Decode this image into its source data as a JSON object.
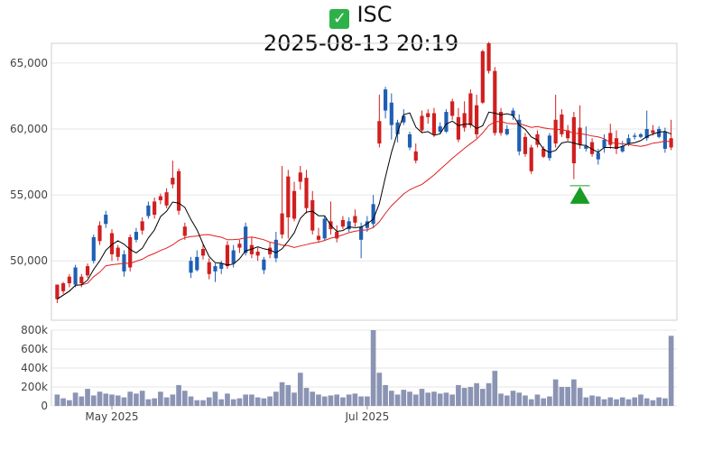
{
  "header": {
    "status_icon": "check-mark-icon",
    "symbol": "ISC",
    "timestamp": "2025-08-13 20:19"
  },
  "colors": {
    "up": "#1f5fb4",
    "down": "#d11f1f",
    "ma_short": "#000000",
    "ma_long": "#e02020",
    "volume": "#8c94b4",
    "signal": "#1a9c24",
    "grid": "#e6e6e6",
    "axis": "#999999"
  },
  "chart_data": {
    "type": "candlestick",
    "price_ylim": [
      45500,
      66500
    ],
    "price_yticks": [
      50000,
      55000,
      60000,
      65000
    ],
    "price_ytick_labels": [
      "50,000",
      "55,000",
      "60,000",
      "65,000"
    ],
    "volume_ylim": [
      0,
      800000
    ],
    "volume_yticks": [
      0,
      200000,
      400000,
      600000,
      800000
    ],
    "volume_ytick_labels": [
      "0",
      "200k",
      "400k",
      "600k",
      "800k"
    ],
    "x_tick_labels": [
      {
        "label": "May 2025",
        "index": 9
      },
      {
        "label": "Jul 2025",
        "index": 51
      }
    ],
    "candles": [
      [
        48200,
        47100,
        48200,
        46800,
        120000
      ],
      [
        48300,
        47700,
        48400,
        47500,
        80000
      ],
      [
        48800,
        48300,
        49000,
        48000,
        60000
      ],
      [
        48200,
        49500,
        49700,
        48000,
        140000
      ],
      [
        48800,
        48300,
        49000,
        48000,
        100000
      ],
      [
        49600,
        48900,
        49800,
        48700,
        180000
      ],
      [
        50000,
        51800,
        52000,
        49800,
        110000
      ],
      [
        52700,
        51500,
        53000,
        51200,
        150000
      ],
      [
        52800,
        53500,
        53800,
        52500,
        130000
      ],
      [
        52100,
        50500,
        52400,
        50000,
        120000
      ],
      [
        51000,
        50300,
        51200,
        50000,
        110000
      ],
      [
        49200,
        50500,
        50800,
        48800,
        90000
      ],
      [
        51800,
        49500,
        52000,
        49200,
        150000
      ],
      [
        51600,
        52200,
        52500,
        51400,
        130000
      ],
      [
        53000,
        52300,
        53300,
        52000,
        160000
      ],
      [
        53400,
        54200,
        54500,
        53200,
        70000
      ],
      [
        54500,
        53500,
        54800,
        53200,
        80000
      ],
      [
        54900,
        54600,
        55100,
        54300,
        150000
      ],
      [
        55200,
        54200,
        55500,
        54000,
        90000
      ],
      [
        56300,
        55800,
        57600,
        55500,
        120000
      ],
      [
        56800,
        53800,
        57000,
        53500,
        220000
      ],
      [
        52600,
        51900,
        52900,
        51600,
        160000
      ],
      [
        49100,
        50000,
        50300,
        48700,
        100000
      ],
      [
        49300,
        50300,
        50800,
        49200,
        60000
      ],
      [
        50900,
        50400,
        51300,
        50100,
        60000
      ],
      [
        49900,
        49000,
        50200,
        48600,
        90000
      ],
      [
        49200,
        49600,
        49800,
        48400,
        150000
      ],
      [
        49400,
        49800,
        50000,
        49000,
        70000
      ],
      [
        51200,
        49600,
        51500,
        49400,
        130000
      ],
      [
        49800,
        50800,
        51200,
        49500,
        70000
      ],
      [
        51300,
        51000,
        51600,
        50600,
        80000
      ],
      [
        50600,
        52600,
        52900,
        50400,
        120000
      ],
      [
        51200,
        50500,
        51800,
        50200,
        120000
      ],
      [
        50700,
        50400,
        51000,
        50000,
        90000
      ],
      [
        49300,
        50100,
        50300,
        49000,
        80000
      ],
      [
        51000,
        50500,
        51400,
        50200,
        100000
      ],
      [
        50200,
        51600,
        52200,
        49900,
        150000
      ],
      [
        53600,
        52000,
        57200,
        51700,
        250000
      ],
      [
        56400,
        53300,
        56900,
        51700,
        220000
      ],
      [
        55300,
        53200,
        56000,
        53000,
        140000
      ],
      [
        56700,
        56000,
        57200,
        55400,
        350000
      ],
      [
        56300,
        54000,
        56900,
        53600,
        190000
      ],
      [
        54600,
        52300,
        55300,
        52000,
        150000
      ],
      [
        51900,
        51600,
        52500,
        51400,
        120000
      ],
      [
        51700,
        53200,
        53400,
        51500,
        100000
      ],
      [
        53000,
        52400,
        54500,
        52000,
        110000
      ],
      [
        52200,
        51700,
        52700,
        51400,
        120000
      ],
      [
        53100,
        52600,
        53400,
        52400,
        90000
      ],
      [
        52400,
        53000,
        53300,
        52200,
        120000
      ],
      [
        53400,
        52900,
        53900,
        52600,
        130000
      ],
      [
        51600,
        52600,
        52900,
        50200,
        100000
      ],
      [
        52500,
        53000,
        53400,
        52200,
        100000
      ],
      [
        52800,
        54300,
        55000,
        52500,
        800000
      ],
      [
        60600,
        58900,
        62600,
        58600,
        350000
      ],
      [
        61400,
        63000,
        63200,
        60800,
        220000
      ],
      [
        60300,
        62000,
        62700,
        59200,
        160000
      ],
      [
        59600,
        60500,
        60700,
        59000,
        120000
      ],
      [
        60500,
        61000,
        61500,
        60300,
        170000
      ],
      [
        58600,
        59600,
        59800,
        58400,
        150000
      ],
      [
        58300,
        57600,
        58900,
        57400,
        120000
      ],
      [
        61000,
        59900,
        61400,
        59700,
        180000
      ],
      [
        61200,
        60900,
        61500,
        60400,
        140000
      ],
      [
        61200,
        59600,
        61600,
        59400,
        150000
      ],
      [
        59800,
        60200,
        60500,
        59700,
        130000
      ],
      [
        59800,
        61300,
        61500,
        59700,
        140000
      ],
      [
        62100,
        61000,
        62300,
        60700,
        120000
      ],
      [
        60900,
        59200,
        61600,
        59000,
        220000
      ],
      [
        61200,
        60100,
        62100,
        59800,
        190000
      ],
      [
        62700,
        60300,
        63000,
        60100,
        200000
      ],
      [
        61800,
        59600,
        62600,
        59300,
        240000
      ],
      [
        65900,
        62000,
        66000,
        61900,
        180000
      ],
      [
        66500,
        64400,
        66600,
        64200,
        240000
      ],
      [
        64400,
        59700,
        64700,
        59500,
        370000
      ],
      [
        61300,
        59700,
        61600,
        59500,
        130000
      ],
      [
        59600,
        60000,
        60300,
        59500,
        110000
      ],
      [
        61000,
        61400,
        61600,
        60700,
        160000
      ],
      [
        58300,
        60700,
        61100,
        58000,
        140000
      ],
      [
        59400,
        58100,
        59700,
        57900,
        110000
      ],
      [
        58600,
        56800,
        58800,
        56600,
        70000
      ],
      [
        59600,
        58800,
        59900,
        58600,
        120000
      ],
      [
        58500,
        57900,
        58700,
        57800,
        80000
      ],
      [
        57800,
        59500,
        59700,
        57600,
        100000
      ],
      [
        60700,
        58900,
        62600,
        58600,
        280000
      ],
      [
        61100,
        59600,
        61500,
        59400,
        200000
      ],
      [
        59900,
        59300,
        60300,
        59100,
        200000
      ],
      [
        60900,
        57400,
        61300,
        56200,
        280000
      ],
      [
        60100,
        58800,
        61800,
        58500,
        190000
      ],
      [
        58500,
        58700,
        60200,
        58300,
        90000
      ],
      [
        59000,
        58100,
        59300,
        57900,
        110000
      ],
      [
        57700,
        58200,
        58500,
        57300,
        100000
      ],
      [
        58600,
        59200,
        59600,
        58200,
        70000
      ],
      [
        59700,
        58800,
        60400,
        58500,
        90000
      ],
      [
        59300,
        58500,
        59900,
        58100,
        70000
      ],
      [
        58300,
        58700,
        59100,
        58200,
        90000
      ],
      [
        58900,
        59300,
        59600,
        58700,
        70000
      ],
      [
        59400,
        59500,
        59700,
        59200,
        90000
      ],
      [
        59400,
        59600,
        59700,
        59300,
        120000
      ],
      [
        59300,
        60000,
        61400,
        59100,
        80000
      ],
      [
        59900,
        59700,
        60300,
        59500,
        60000
      ],
      [
        59400,
        60000,
        60200,
        59300,
        90000
      ],
      [
        58500,
        59800,
        60100,
        58200,
        80000
      ],
      [
        59300,
        58600,
        60700,
        58400,
        740000
      ]
    ],
    "signal_index": 86,
    "signal_price": 55700
  }
}
